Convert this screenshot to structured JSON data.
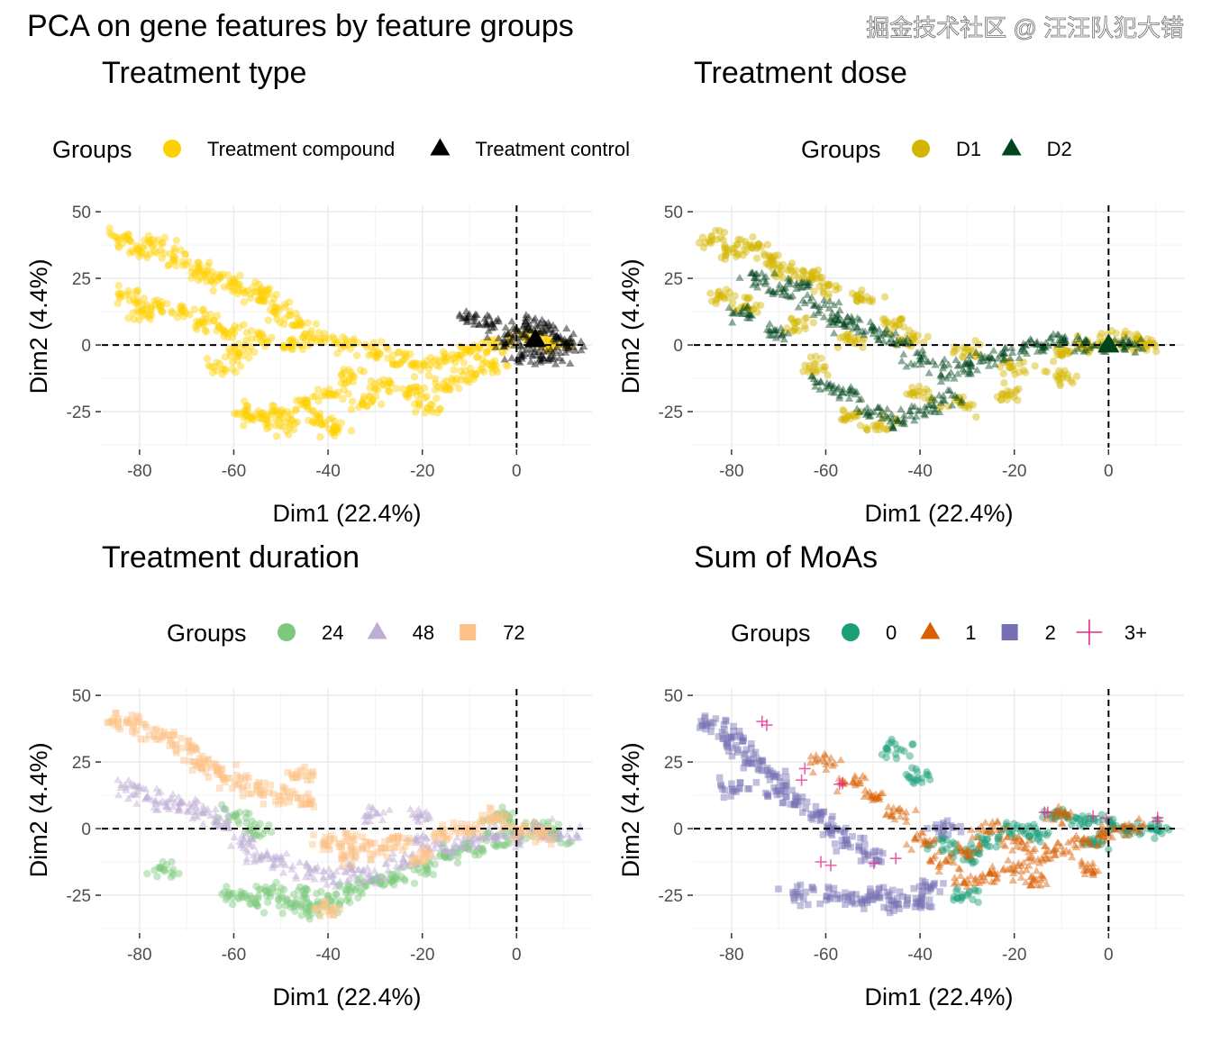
{
  "title": "PCA on gene features by feature groups",
  "watermark": "掘金技术社区 @ 汪汪队犯大错",
  "chart_data": [
    {
      "type": "scatter",
      "title": "Treatment type",
      "xlabel": "Dim1 (22.4%)",
      "ylabel": "Dim2 (4.4%)",
      "xlim": [
        -88,
        16
      ],
      "ylim": [
        -38.5,
        52.4
      ],
      "xticks": [
        -80,
        -60,
        -40,
        -20,
        0
      ],
      "yticks": [
        -25,
        0,
        25,
        50
      ],
      "grid": true,
      "reference_lines": {
        "x": 0,
        "y": 0,
        "style": "dashed"
      },
      "legend": {
        "title": "Groups",
        "position": "top"
      },
      "series": [
        {
          "name": "Treatment compound",
          "color": "#FFD000",
          "shape": "circle",
          "points": [
            [
              -84,
              40
            ],
            [
              -80,
              35
            ],
            [
              -76,
              38
            ],
            [
              -72,
              32
            ],
            [
              -68,
              28
            ],
            [
              -64,
              26
            ],
            [
              -60,
              22
            ],
            [
              -56,
              20
            ],
            [
              -52,
              18
            ],
            [
              -50,
              12
            ],
            [
              -46,
              8
            ],
            [
              -82,
              18
            ],
            [
              -80,
              12
            ],
            [
              -76,
              15
            ],
            [
              -70,
              12
            ],
            [
              -66,
              8
            ],
            [
              -62,
              5
            ],
            [
              -55,
              2
            ],
            [
              -48,
              0
            ],
            [
              -42,
              2
            ],
            [
              -36,
              0
            ],
            [
              -30,
              -2
            ],
            [
              -25,
              -5
            ],
            [
              -20,
              -8
            ],
            [
              -15,
              -5
            ],
            [
              -10,
              -3
            ],
            [
              -5,
              0
            ],
            [
              0,
              2
            ],
            [
              5,
              2
            ],
            [
              8,
              0
            ],
            [
              -28,
              -15
            ],
            [
              -22,
              -18
            ],
            [
              -15,
              -15
            ],
            [
              -10,
              -12
            ],
            [
              -5,
              -8
            ],
            [
              -35,
              -12
            ],
            [
              -40,
              -18
            ],
            [
              -45,
              -22
            ],
            [
              -50,
              -25
            ],
            [
              -55,
              -27
            ],
            [
              -58,
              -26
            ],
            [
              -48,
              -30
            ],
            [
              -42,
              -28
            ],
            [
              -38,
              -32
            ],
            [
              -32,
              -22
            ],
            [
              -18,
              -22
            ],
            [
              -62,
              -8
            ],
            [
              -58,
              -2
            ]
          ]
        },
        {
          "name": "Treatment control",
          "color": "#000000",
          "shape": "triangle",
          "points": [
            [
              0,
              5
            ],
            [
              3,
              8
            ],
            [
              6,
              6
            ],
            [
              9,
              2
            ],
            [
              11,
              0
            ],
            [
              4,
              -3
            ],
            [
              -2,
              2
            ],
            [
              -6,
              8
            ],
            [
              -10,
              10
            ],
            [
              2,
              -5
            ],
            [
              8,
              -4
            ]
          ],
          "centroid": [
            4,
            2
          ]
        }
      ]
    },
    {
      "type": "scatter",
      "title": "Treatment dose",
      "xlabel": "Dim1 (22.4%)",
      "ylabel": "Dim2 (4.4%)",
      "xlim": [
        -88,
        16
      ],
      "ylim": [
        -38.5,
        52.4
      ],
      "xticks": [
        -80,
        -60,
        -40,
        -20,
        0
      ],
      "yticks": [
        -25,
        0,
        25,
        50
      ],
      "grid": true,
      "reference_lines": {
        "x": 0,
        "y": 0,
        "style": "dashed"
      },
      "legend": {
        "title": "Groups",
        "position": "top"
      },
      "series": [
        {
          "name": "D1",
          "color": "#D4B500",
          "shape": "circle",
          "points": [
            [
              -84,
              40
            ],
            [
              -80,
              35
            ],
            [
              -76,
              38
            ],
            [
              -72,
              32
            ],
            [
              -68,
              28
            ],
            [
              -64,
              26
            ],
            [
              -60,
              22
            ],
            [
              -52,
              18
            ],
            [
              -46,
              8
            ],
            [
              -82,
              18
            ],
            [
              -76,
              15
            ],
            [
              -66,
              8
            ],
            [
              -55,
              2
            ],
            [
              -42,
              2
            ],
            [
              -30,
              -2
            ],
            [
              -20,
              -8
            ],
            [
              -10,
              -3
            ],
            [
              -5,
              0
            ],
            [
              0,
              2
            ],
            [
              5,
              2
            ],
            [
              8,
              0
            ],
            [
              -22,
              -18
            ],
            [
              -10,
              -12
            ],
            [
              -40,
              -18
            ],
            [
              -55,
              -27
            ],
            [
              -48,
              -30
            ],
            [
              -32,
              -22
            ],
            [
              -62,
              -8
            ]
          ]
        },
        {
          "name": "D2",
          "color": "#00441B",
          "shape": "triangle",
          "points": [
            [
              -75,
              25
            ],
            [
              -70,
              20
            ],
            [
              -65,
              22
            ],
            [
              -62,
              15
            ],
            [
              -58,
              10
            ],
            [
              -55,
              8
            ],
            [
              -50,
              5
            ],
            [
              -45,
              2
            ],
            [
              -40,
              -5
            ],
            [
              -35,
              -10
            ],
            [
              -30,
              -8
            ],
            [
              -25,
              -5
            ],
            [
              -20,
              -2
            ],
            [
              -15,
              0
            ],
            [
              -10,
              2
            ],
            [
              -5,
              0
            ],
            [
              0,
              0
            ],
            [
              5,
              0
            ],
            [
              -50,
              -25
            ],
            [
              -45,
              -28
            ],
            [
              -40,
              -25
            ],
            [
              -35,
              -20
            ],
            [
              -60,
              -15
            ],
            [
              -55,
              -18
            ],
            [
              -70,
              5
            ],
            [
              -78,
              12
            ]
          ],
          "centroid": [
            0,
            0
          ]
        }
      ]
    },
    {
      "type": "scatter",
      "title": "Treatment duration",
      "xlabel": "Dim1 (22.4%)",
      "ylabel": "Dim2 (4.4%)",
      "xlim": [
        -88,
        16
      ],
      "ylim": [
        -38.5,
        52.4
      ],
      "xticks": [
        -80,
        -60,
        -40,
        -20,
        0
      ],
      "yticks": [
        -25,
        0,
        25,
        50
      ],
      "grid": true,
      "reference_lines": {
        "x": 0,
        "y": 0,
        "style": "dashed"
      },
      "legend": {
        "title": "Groups",
        "position": "top"
      },
      "series": [
        {
          "name": "24",
          "color": "#7FC97F",
          "shape": "circle",
          "points": [
            [
              -60,
              -25
            ],
            [
              -55,
              -27
            ],
            [
              -52,
              -24
            ],
            [
              -48,
              -28
            ],
            [
              -45,
              -25
            ],
            [
              -42,
              -30
            ],
            [
              -38,
              -27
            ],
            [
              -35,
              -22
            ],
            [
              -30,
              -20
            ],
            [
              -25,
              -18
            ],
            [
              -20,
              -15
            ],
            [
              -15,
              -10
            ],
            [
              -10,
              -8
            ],
            [
              -5,
              -5
            ],
            [
              0,
              -2
            ],
            [
              5,
              0
            ],
            [
              8,
              -3
            ],
            [
              -3,
              5
            ],
            [
              -55,
              0
            ],
            [
              -60,
              5
            ],
            [
              -75,
              -15
            ]
          ]
        },
        {
          "name": "48",
          "color": "#BEAED4",
          "shape": "triangle",
          "points": [
            [
              -82,
              15
            ],
            [
              -78,
              12
            ],
            [
              -74,
              10
            ],
            [
              -70,
              8
            ],
            [
              -66,
              5
            ],
            [
              -62,
              2
            ],
            [
              -58,
              -5
            ],
            [
              -55,
              -10
            ],
            [
              -50,
              -12
            ],
            [
              -45,
              -15
            ],
            [
              -40,
              -18
            ],
            [
              -35,
              -15
            ],
            [
              -30,
              -18
            ],
            [
              -25,
              -12
            ],
            [
              -20,
              -5
            ],
            [
              -15,
              -8
            ],
            [
              -10,
              -5
            ],
            [
              -5,
              -2
            ],
            [
              0,
              -3
            ],
            [
              5,
              0
            ],
            [
              10,
              -3
            ],
            [
              -20,
              5
            ],
            [
              -30,
              5
            ]
          ]
        },
        {
          "name": "72",
          "color": "#FDC086",
          "shape": "square",
          "points": [
            [
              -84,
              40
            ],
            [
              -80,
              38
            ],
            [
              -75,
              35
            ],
            [
              -70,
              30
            ],
            [
              -68,
              25
            ],
            [
              -64,
              22
            ],
            [
              -60,
              18
            ],
            [
              -55,
              15
            ],
            [
              -50,
              12
            ],
            [
              -45,
              10
            ],
            [
              -40,
              -5
            ],
            [
              -35,
              -10
            ],
            [
              -30,
              -8
            ],
            [
              -25,
              -5
            ],
            [
              -20,
              -10
            ],
            [
              -15,
              -2
            ],
            [
              -10,
              0
            ],
            [
              -5,
              5
            ],
            [
              0,
              0
            ],
            [
              5,
              -2
            ],
            [
              -40,
              -30
            ],
            [
              -35,
              -5
            ],
            [
              -45,
              20
            ]
          ]
        }
      ]
    },
    {
      "type": "scatter",
      "title": "Sum of MoAs",
      "xlabel": "Dim1 (22.4%)",
      "ylabel": "Dim2 (4.4%)",
      "xlim": [
        -88,
        16
      ],
      "ylim": [
        -38.5,
        52.4
      ],
      "xticks": [
        -80,
        -60,
        -40,
        -20,
        0
      ],
      "yticks": [
        -25,
        0,
        25,
        50
      ],
      "grid": true,
      "reference_lines": {
        "x": 0,
        "y": 0,
        "style": "dashed"
      },
      "legend": {
        "title": "Groups",
        "position": "top"
      },
      "series": [
        {
          "name": "0",
          "color": "#1B9E77",
          "shape": "circle",
          "points": [
            [
              -30,
              -10
            ],
            [
              -25,
              -5
            ],
            [
              -20,
              0
            ],
            [
              -15,
              -2
            ],
            [
              -10,
              5
            ],
            [
              -5,
              3
            ],
            [
              0,
              2
            ],
            [
              5,
              0
            ],
            [
              10,
              0
            ],
            [
              -3,
              -5
            ],
            [
              -35,
              -5
            ],
            [
              -45,
              30
            ],
            [
              -40,
              20
            ],
            [
              -30,
              -25
            ]
          ]
        },
        {
          "name": "1",
          "color": "#D95F02",
          "shape": "triangle",
          "points": [
            [
              -60,
              25
            ],
            [
              -55,
              18
            ],
            [
              -50,
              12
            ],
            [
              -45,
              5
            ],
            [
              -40,
              -5
            ],
            [
              -35,
              -12
            ],
            [
              -30,
              -20
            ],
            [
              -25,
              -18
            ],
            [
              -20,
              -15
            ],
            [
              -15,
              -10
            ],
            [
              -10,
              -8
            ],
            [
              -5,
              -5
            ],
            [
              0,
              -2
            ],
            [
              5,
              0
            ],
            [
              -20,
              -5
            ],
            [
              -10,
              5
            ],
            [
              -25,
              0
            ],
            [
              -30,
              -8
            ],
            [
              -15,
              -20
            ],
            [
              -5,
              -15
            ]
          ]
        },
        {
          "name": "2",
          "color": "#7570B3",
          "shape": "square",
          "points": [
            [
              -84,
              40
            ],
            [
              -80,
              35
            ],
            [
              -78,
              30
            ],
            [
              -75,
              25
            ],
            [
              -72,
              20
            ],
            [
              -70,
              15
            ],
            [
              -66,
              10
            ],
            [
              -62,
              5
            ],
            [
              -58,
              0
            ],
            [
              -55,
              -5
            ],
            [
              -50,
              -10
            ],
            [
              -48,
              -25
            ],
            [
              -52,
              -27
            ],
            [
              -45,
              -28
            ],
            [
              -40,
              -28
            ],
            [
              -58,
              -25
            ],
            [
              -65,
              -25
            ],
            [
              -38,
              -22
            ],
            [
              -80,
              15
            ],
            [
              -35,
              0
            ]
          ]
        },
        {
          "name": "3+",
          "color": "#E7298A",
          "shape": "plus",
          "points": [
            [
              -75,
              40
            ],
            [
              -65,
              20
            ],
            [
              -55,
              15
            ],
            [
              -48,
              -10
            ],
            [
              -60,
              -10
            ],
            [
              -15,
              5
            ],
            [
              0,
              5
            ],
            [
              10,
              3
            ]
          ]
        }
      ]
    }
  ]
}
